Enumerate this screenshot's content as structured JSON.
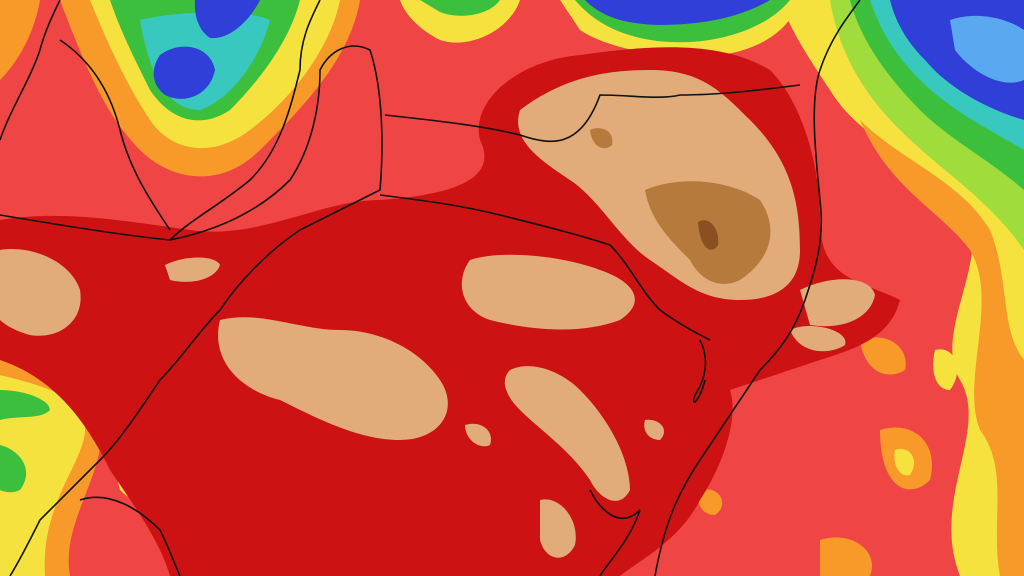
{
  "map": {
    "kind": "precipitation-accumulation",
    "region": "southern-brazil",
    "colors": {
      "base_red": "#f04545",
      "dark_red": "#cc1212",
      "tan": "#e2ab7a",
      "brown": "#b67a3c",
      "dark_brown": "#8a5022",
      "orange": "#f79a2a",
      "yellow": "#f6e23e",
      "light_green": "#9fdc3c",
      "green": "#3cbf3c",
      "cyan": "#38c8c0",
      "light_blue": "#5aa8f0",
      "blue": "#2f3fd8",
      "border": "#111111"
    }
  }
}
